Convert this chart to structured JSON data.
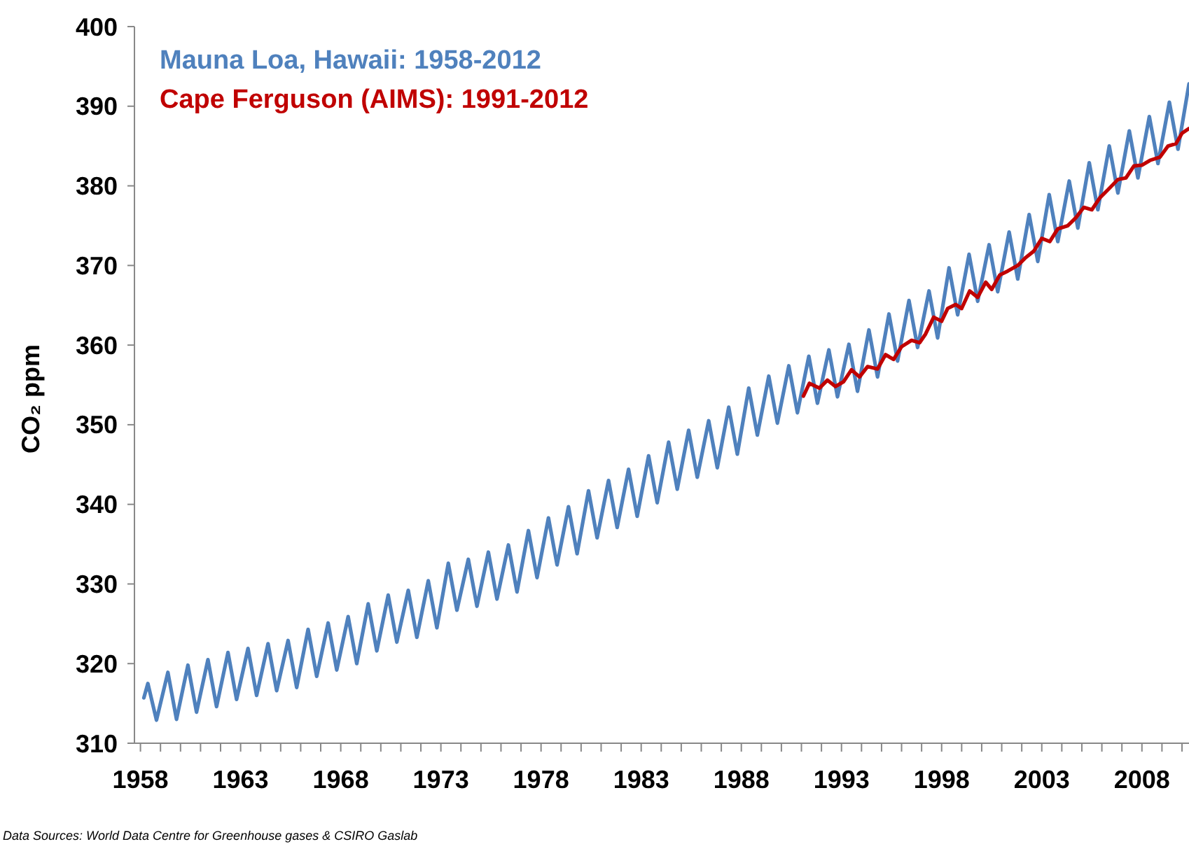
{
  "chart_data": {
    "type": "line",
    "ylabel": "CO₂ ppm",
    "xlim": [
      1957.7,
      2010.35
    ],
    "ylim": [
      310,
      400
    ],
    "xticks": [
      1958,
      {
        "value": 1959,
        "label": null
      },
      {
        "value": 1960,
        "label": null
      },
      {
        "value": 1961,
        "label": null
      },
      {
        "value": 1962,
        "label": null
      },
      1963,
      {
        "value": 1964,
        "label": null
      },
      {
        "value": 1965,
        "label": null
      },
      {
        "value": 1966,
        "label": null
      },
      {
        "value": 1967,
        "label": null
      },
      1968,
      {
        "value": 1969,
        "label": null
      },
      {
        "value": 1970,
        "label": null
      },
      {
        "value": 1971,
        "label": null
      },
      {
        "value": 1972,
        "label": null
      },
      1973,
      {
        "value": 1974,
        "label": null
      },
      {
        "value": 1975,
        "label": null
      },
      {
        "value": 1976,
        "label": null
      },
      {
        "value": 1977,
        "label": null
      },
      1978,
      {
        "value": 1979,
        "label": null
      },
      {
        "value": 1980,
        "label": null
      },
      {
        "value": 1981,
        "label": null
      },
      {
        "value": 1982,
        "label": null
      },
      1983,
      {
        "value": 1984,
        "label": null
      },
      {
        "value": 1985,
        "label": null
      },
      {
        "value": 1986,
        "label": null
      },
      {
        "value": 1987,
        "label": null
      },
      1988,
      {
        "value": 1989,
        "label": null
      },
      {
        "value": 1990,
        "label": null
      },
      {
        "value": 1991,
        "label": null
      },
      {
        "value": 1992,
        "label": null
      },
      1993,
      {
        "value": 1994,
        "label": null
      },
      {
        "value": 1995,
        "label": null
      },
      {
        "value": 1996,
        "label": null
      },
      {
        "value": 1997,
        "label": null
      },
      1998,
      {
        "value": 1999,
        "label": null
      },
      {
        "value": 2000,
        "label": null
      },
      {
        "value": 2001,
        "label": null
      },
      {
        "value": 2002,
        "label": null
      },
      2003,
      {
        "value": 2004,
        "label": null
      },
      {
        "value": 2005,
        "label": null
      },
      {
        "value": 2006,
        "label": null
      },
      {
        "value": 2007,
        "label": null
      },
      2008,
      {
        "value": 2009,
        "label": null
      },
      {
        "value": 2010,
        "label": null
      }
    ],
    "yticks": [
      310,
      320,
      330,
      340,
      350,
      360,
      370,
      380,
      390,
      400
    ],
    "grid": false,
    "legend": "top left",
    "marker": "none",
    "line_style": "solid",
    "annotations": [
      "Data Sources: World Data Centre for Greenhouse gases & CSIRO Gaslab"
    ],
    "series": [
      {
        "name": "Mauna Loa, Hawaii: 1958-2012",
        "color": "#4f81bd",
        "x": [
          1958.17,
          1958.37,
          1958.8,
          1959.37,
          1959.8,
          1960.37,
          1960.8,
          1961.37,
          1961.8,
          1962.37,
          1962.8,
          1963.37,
          1963.8,
          1964.37,
          1964.8,
          1965.37,
          1965.8,
          1966.37,
          1966.8,
          1967.37,
          1967.8,
          1968.37,
          1968.8,
          1969.37,
          1969.8,
          1970.37,
          1970.8,
          1971.37,
          1971.8,
          1972.37,
          1972.8,
          1973.37,
          1973.8,
          1974.37,
          1974.8,
          1975.37,
          1975.8,
          1976.37,
          1976.8,
          1977.37,
          1977.8,
          1978.37,
          1978.8,
          1979.37,
          1979.8,
          1980.37,
          1980.8,
          1981.37,
          1981.8,
          1982.37,
          1982.8,
          1983.37,
          1983.8,
          1984.37,
          1984.8,
          1985.37,
          1985.8,
          1986.37,
          1986.8,
          1987.37,
          1987.8,
          1988.37,
          1988.8,
          1989.37,
          1989.8,
          1990.37,
          1990.8,
          1991.37,
          1991.8,
          1992.37,
          1992.8,
          1993.37,
          1993.8,
          1994.37,
          1994.8,
          1995.37,
          1995.8,
          1996.37,
          1996.8,
          1997.37,
          1997.8,
          1998.37,
          1998.8,
          1999.37,
          1999.8,
          2000.37,
          2000.8,
          2001.37,
          2001.8,
          2002.37,
          2002.8,
          2003.37,
          2003.8,
          2004.37,
          2004.8,
          2005.37,
          2005.8,
          2006.37,
          2006.8,
          2007.37,
          2007.8,
          2008.37,
          2008.8,
          2009.37,
          2009.8,
          2010.35
        ],
        "values": [
          315.7,
          317.5,
          312.9,
          318.9,
          313.0,
          319.8,
          313.9,
          320.5,
          314.6,
          321.4,
          315.5,
          321.9,
          316.0,
          322.5,
          316.6,
          322.9,
          317.0,
          324.3,
          318.4,
          325.1,
          319.2,
          325.9,
          320.0,
          327.5,
          321.6,
          328.6,
          322.7,
          329.2,
          323.3,
          330.4,
          324.5,
          332.6,
          326.7,
          333.1,
          327.2,
          334.0,
          328.1,
          334.9,
          329.0,
          336.7,
          330.8,
          338.3,
          332.4,
          339.7,
          333.8,
          341.7,
          335.8,
          343.0,
          337.1,
          344.4,
          338.5,
          346.1,
          340.2,
          347.8,
          341.9,
          349.3,
          343.4,
          350.5,
          344.6,
          352.2,
          346.3,
          354.6,
          348.7,
          356.1,
          350.2,
          357.4,
          351.5,
          358.6,
          352.7,
          359.4,
          353.5,
          360.1,
          354.2,
          361.9,
          356.0,
          363.9,
          358.0,
          365.6,
          359.7,
          366.8,
          360.9,
          369.7,
          363.8,
          371.4,
          365.5,
          372.6,
          366.7,
          374.2,
          368.3,
          376.4,
          370.5,
          378.9,
          373.0,
          380.6,
          374.7,
          382.9,
          377.0,
          385.0,
          379.1,
          386.9,
          381.0,
          388.7,
          382.8,
          390.5,
          384.6,
          392.8
        ]
      },
      {
        "name": "Cape Ferguson (AIMS): 1991-2012",
        "color": "#c00000",
        "x": [
          1991.1,
          1991.4,
          1991.9,
          1992.3,
          1992.7,
          1993.1,
          1993.5,
          1993.9,
          1994.3,
          1994.8,
          1995.2,
          1995.6,
          1996.0,
          1996.5,
          1996.9,
          1997.2,
          1997.6,
          1998.0,
          1998.3,
          1998.7,
          1999.0,
          1999.4,
          1999.8,
          2000.2,
          2000.5,
          2000.9,
          2001.3,
          2001.8,
          2002.2,
          2002.6,
          2003.0,
          2003.4,
          2003.8,
          2004.3,
          2004.7,
          2005.1,
          2005.5,
          2005.9,
          2006.3,
          2006.8,
          2007.2,
          2007.6,
          2008.0,
          2008.4,
          2008.9,
          2009.3,
          2009.7,
          2010.0,
          2010.35
        ],
        "values": [
          353.6,
          355.2,
          354.6,
          355.6,
          354.8,
          355.4,
          356.9,
          356.0,
          357.3,
          357.0,
          358.8,
          358.2,
          359.8,
          360.6,
          360.3,
          361.4,
          363.5,
          363.0,
          364.6,
          365.1,
          364.6,
          366.8,
          366.0,
          367.9,
          367.0,
          368.8,
          369.3,
          370.0,
          371.0,
          371.8,
          373.4,
          373.0,
          374.6,
          375.0,
          376.0,
          377.3,
          377.0,
          378.5,
          379.5,
          380.8,
          381.0,
          382.5,
          382.6,
          383.2,
          383.6,
          385.0,
          385.3,
          386.6,
          387.2
        ]
      }
    ]
  }
}
